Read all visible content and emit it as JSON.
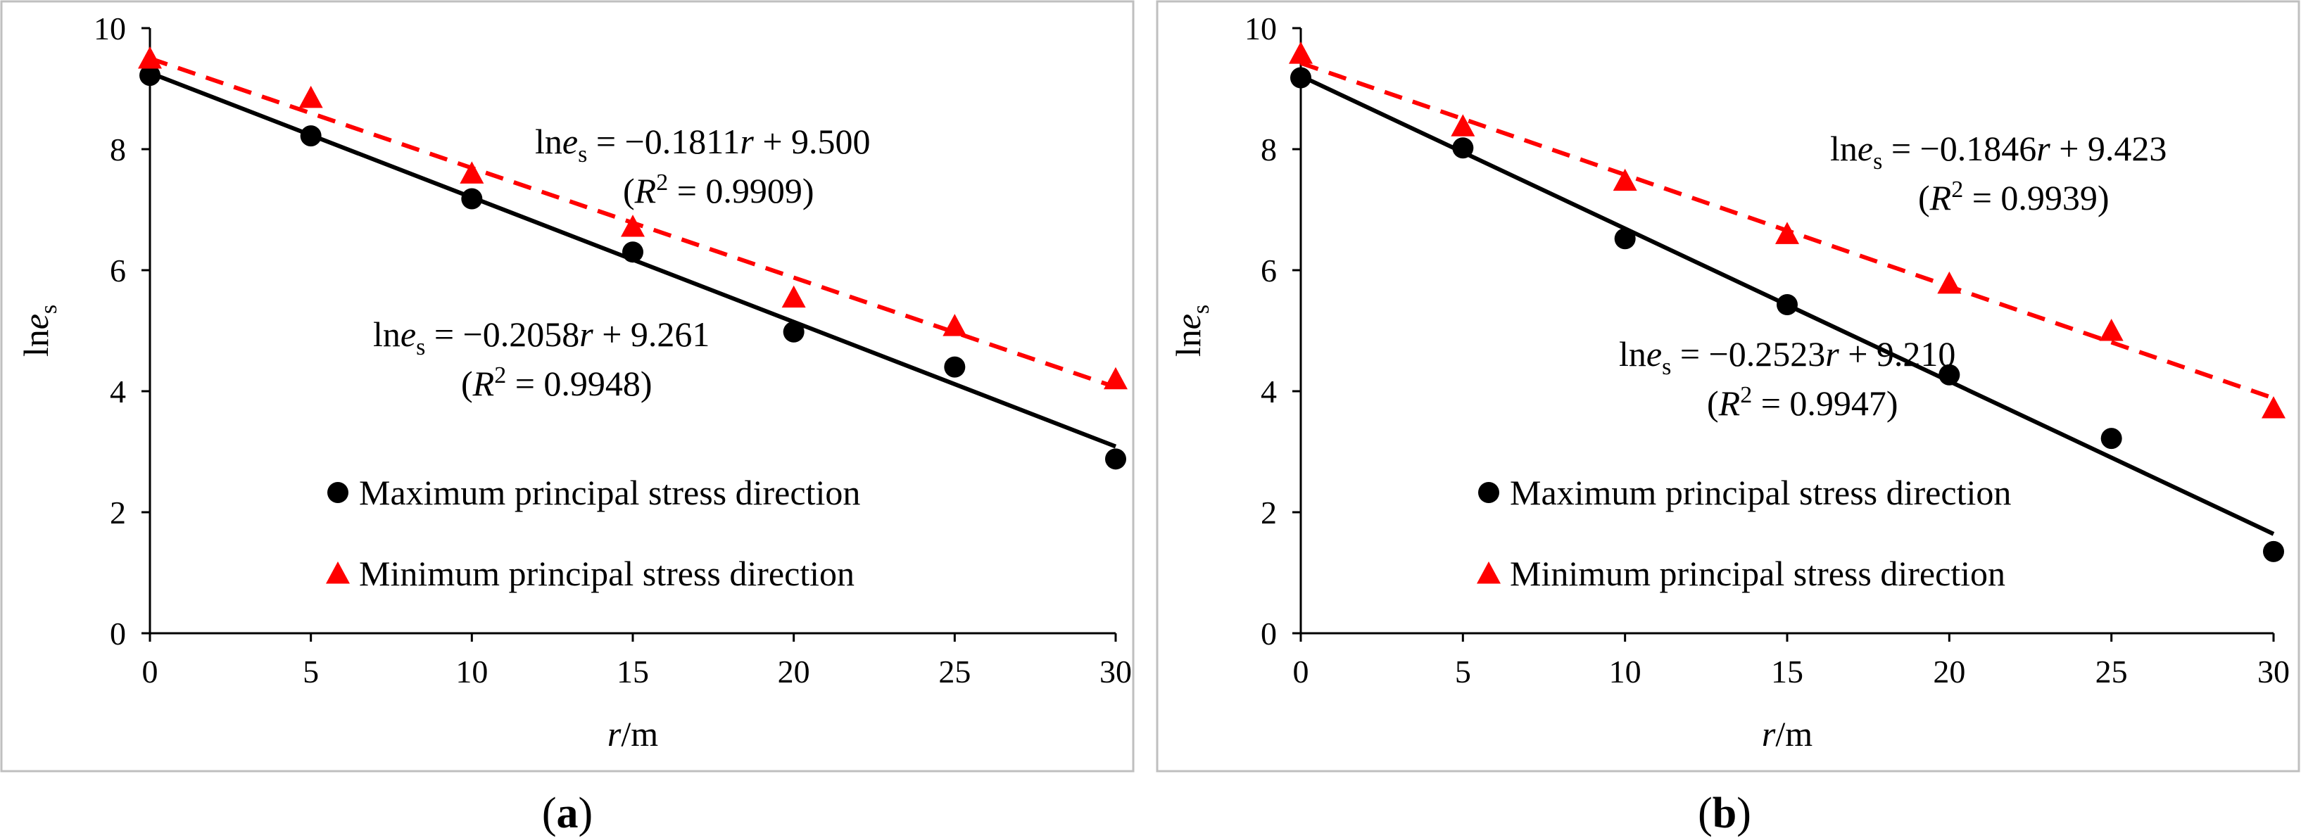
{
  "figure": {
    "panels": [
      {
        "id": "a",
        "caption_label": "a",
        "chart_data": {
          "type": "scatter",
          "x": [
            0,
            5,
            10,
            15,
            20,
            25,
            30
          ],
          "xlim": [
            0,
            30
          ],
          "ylim": [
            0,
            10
          ],
          "xticks": [
            0,
            5,
            10,
            15,
            20,
            25,
            30
          ],
          "yticks": [
            0,
            2,
            4,
            6,
            8,
            10
          ],
          "xlabel_italic": "r",
          "xlabel_rest": "/m",
          "ylabel_plain": "ln",
          "ylabel_italic": "e",
          "ylabel_sub": "s",
          "series": [
            {
              "name": "Maximum principal stress direction",
              "marker": "circle",
              "color": "#000000",
              "values": [
                9.22,
                8.22,
                7.18,
                6.3,
                4.98,
                4.4,
                2.88
              ],
              "fit": {
                "slope": -0.2058,
                "intercept": 9.261,
                "style": "solid",
                "eq_pre": "ln",
                "eq_italic": "e",
                "eq_sub": "s",
                "eq_mid": " = −0.2058",
                "eq_var": "r",
                "eq_post": " + 9.261",
                "r2_pre": "(",
                "r2_italic": "R",
                "r2_sup": "2",
                "r2_post": " = 0.9948)"
              }
            },
            {
              "name": "Minimum principal stress direction",
              "marker": "triangle",
              "color": "#ff0000",
              "values": [
                9.5,
                8.85,
                7.6,
                6.72,
                5.55,
                5.08,
                4.2
              ],
              "fit": {
                "slope": -0.1811,
                "intercept": 9.5,
                "style": "dashed",
                "eq_pre": "ln",
                "eq_italic": "e",
                "eq_sub": "s",
                "eq_mid": " = −0.1811",
                "eq_var": "r",
                "eq_post": " + 9.500",
                "r2_pre": "(",
                "r2_italic": "R",
                "r2_sup": "2",
                "r2_post": " = 0.9909)"
              }
            }
          ]
        }
      },
      {
        "id": "b",
        "caption_label": "b",
        "chart_data": {
          "type": "scatter",
          "x": [
            0,
            5,
            10,
            15,
            20,
            25,
            30
          ],
          "xlim": [
            0,
            30
          ],
          "ylim": [
            0,
            10
          ],
          "xticks": [
            0,
            5,
            10,
            15,
            20,
            25,
            30
          ],
          "yticks": [
            0,
            2,
            4,
            6,
            8,
            10
          ],
          "xlabel_italic": "r",
          "xlabel_rest": "/m",
          "ylabel_plain": "ln",
          "ylabel_italic": "e",
          "ylabel_sub": "s",
          "series": [
            {
              "name": "Maximum principal stress direction",
              "marker": "circle",
              "color": "#000000",
              "values": [
                9.18,
                8.02,
                6.52,
                5.43,
                4.27,
                3.22,
                1.35
              ],
              "fit": {
                "slope": -0.2523,
                "intercept": 9.21,
                "style": "solid",
                "eq_pre": "ln",
                "eq_italic": "e",
                "eq_sub": "s",
                "eq_mid": " = −0.2523",
                "eq_var": "r",
                "eq_post": " + 9.210",
                "r2_pre": "(",
                "r2_italic": "R",
                "r2_sup": "2",
                "r2_post": " = 0.9947)"
              }
            },
            {
              "name": "Minimum principal stress direction",
              "marker": "triangle",
              "color": "#ff0000",
              "values": [
                9.58,
                8.38,
                7.48,
                6.6,
                5.78,
                5.0,
                3.72
              ],
              "fit": {
                "slope": -0.1846,
                "intercept": 9.423,
                "style": "dashed",
                "eq_pre": "ln",
                "eq_italic": "e",
                "eq_sub": "s",
                "eq_mid": " = −0.1846",
                "eq_var": "r",
                "eq_post": " + 9.423",
                "r2_pre": "(",
                "r2_italic": "R",
                "r2_sup": "2",
                "r2_post": " = 0.9939)"
              }
            }
          ]
        }
      }
    ]
  }
}
